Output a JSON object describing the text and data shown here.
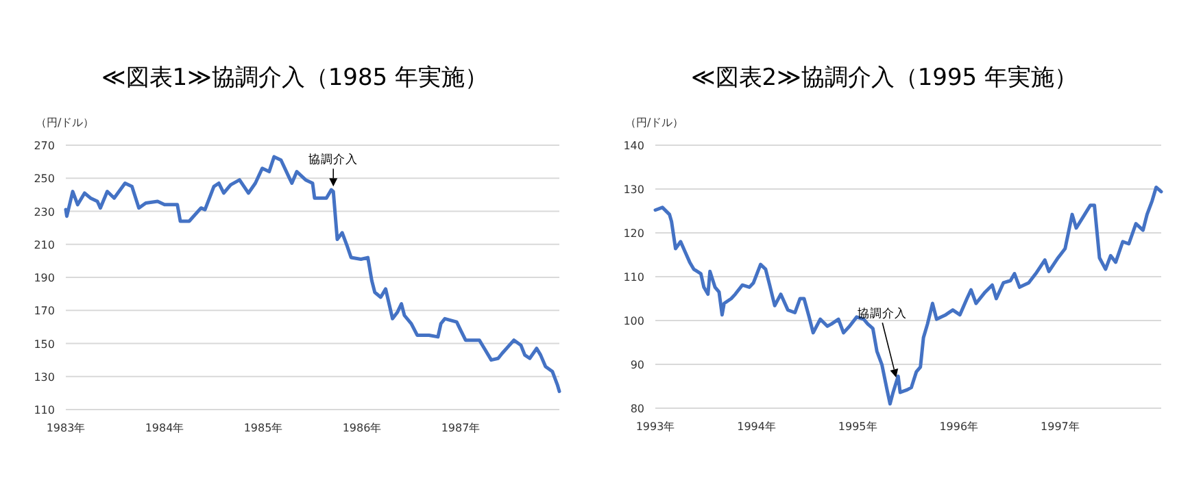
{
  "chart_data": [
    {
      "type": "line",
      "title": "≪図表1≫協調介入（1985 年実施）",
      "ylabel": "（円/ドル）",
      "grid": "y",
      "marker": "none",
      "line_style": "solid",
      "xlim": [
        1983,
        1988
      ],
      "xticks": [
        {
          "value": 1983,
          "label": "1983年"
        },
        {
          "value": 1984,
          "label": "1984年"
        },
        {
          "value": 1985,
          "label": "1985年"
        },
        {
          "value": 1986,
          "label": "1986年"
        },
        {
          "value": 1987,
          "label": "1987年"
        }
      ],
      "ylim": [
        110,
        270
      ],
      "yticks": [
        110,
        130,
        150,
        170,
        190,
        210,
        230,
        250,
        270
      ],
      "annotations": [
        {
          "text": "協調介入",
          "x": 1985.71,
          "y": 245
        }
      ],
      "series": [
        {
          "color": "#4472c4",
          "x": [
            1983.0,
            1983.01,
            1983.07,
            1983.12,
            1983.19,
            1983.25,
            1983.32,
            1983.35,
            1983.42,
            1983.49,
            1983.6,
            1983.67,
            1983.74,
            1983.81,
            1983.93,
            1984.0,
            1984.13,
            1984.16,
            1984.25,
            1984.37,
            1984.41,
            1984.5,
            1984.55,
            1984.6,
            1984.67,
            1984.76,
            1984.85,
            1984.92,
            1984.99,
            1985.06,
            1985.11,
            1985.18,
            1985.25,
            1985.29,
            1985.34,
            1985.43,
            1985.5,
            1985.52,
            1985.64,
            1985.69,
            1985.71,
            1985.75,
            1985.8,
            1985.85,
            1985.89,
            1985.99,
            1986.06,
            1986.1,
            1986.13,
            1986.19,
            1986.24,
            1986.31,
            1986.36,
            1986.4,
            1986.43,
            1986.5,
            1986.56,
            1986.68,
            1986.77,
            1986.8,
            1986.84,
            1986.96,
            1987.0,
            1987.05,
            1987.19,
            1987.24,
            1987.31,
            1987.38,
            1987.42,
            1987.54,
            1987.61,
            1987.65,
            1987.7,
            1987.77,
            1987.81,
            1987.86,
            1987.93,
            1987.98,
            1988.0
          ],
          "values": [
            231,
            227,
            242,
            234,
            241,
            238,
            236,
            232,
            242,
            238,
            247,
            245,
            232,
            235,
            236,
            234,
            234,
            224,
            224,
            232,
            231,
            245,
            247,
            241,
            246,
            249,
            241,
            247,
            256,
            254,
            263,
            261,
            252,
            247,
            254,
            249,
            247,
            238,
            238,
            243,
            242,
            213,
            217,
            209,
            202,
            201,
            202,
            188,
            181,
            178,
            183,
            165,
            169,
            174,
            167,
            162,
            155,
            155,
            154,
            162,
            165,
            163,
            158,
            152,
            152,
            147,
            140,
            141,
            144,
            152,
            149,
            143,
            141,
            147,
            143,
            136,
            133,
            125,
            121
          ]
        }
      ]
    },
    {
      "type": "line",
      "title": "≪図表2≫協調介入（1995 年実施）",
      "ylabel": "（円/ドル）",
      "grid": "y",
      "marker": "none",
      "line_style": "solid",
      "xlim": [
        1993,
        1998
      ],
      "xticks": [
        {
          "value": 1993,
          "label": "1993年"
        },
        {
          "value": 1994,
          "label": "1994年"
        },
        {
          "value": 1995,
          "label": "1995年"
        },
        {
          "value": 1996,
          "label": "1996年"
        },
        {
          "value": 1997,
          "label": "1997年"
        }
      ],
      "ylim": [
        80,
        140
      ],
      "yticks": [
        80,
        90,
        100,
        110,
        120,
        130,
        140
      ],
      "annotations": [
        {
          "text": "協調介入",
          "x": 1995.38,
          "y": 87
        }
      ],
      "series": [
        {
          "color": "#4472c4",
          "x": [
            1993.0,
            1993.07,
            1993.14,
            1993.16,
            1993.2,
            1993.25,
            1993.29,
            1993.34,
            1993.38,
            1993.45,
            1993.48,
            1993.52,
            1993.54,
            1993.59,
            1993.63,
            1993.66,
            1993.68,
            1993.75,
            1993.79,
            1993.86,
            1993.93,
            1993.97,
            1994.04,
            1994.09,
            1994.13,
            1994.18,
            1994.24,
            1994.31,
            1994.38,
            1994.43,
            1994.47,
            1994.52,
            1994.56,
            1994.63,
            1994.7,
            1994.74,
            1994.81,
            1994.86,
            1994.92,
            1994.99,
            1995.06,
            1995.1,
            1995.15,
            1995.19,
            1995.24,
            1995.29,
            1995.32,
            1995.35,
            1995.4,
            1995.42,
            1995.49,
            1995.53,
            1995.58,
            1995.62,
            1995.65,
            1995.69,
            1995.74,
            1995.78,
            1995.87,
            1995.94,
            1996.01,
            1996.08,
            1996.12,
            1996.17,
            1996.26,
            1996.33,
            1996.37,
            1996.44,
            1996.51,
            1996.55,
            1996.6,
            1996.69,
            1996.76,
            1996.85,
            1996.89,
            1996.98,
            1997.05,
            1997.12,
            1997.16,
            1997.23,
            1997.3,
            1997.34,
            1997.39,
            1997.45,
            1997.5,
            1997.55,
            1997.62,
            1997.68,
            1997.75,
            1997.82,
            1997.86,
            1997.91,
            1997.95,
            1998.0
          ],
          "values": [
            125.2,
            125.8,
            124.2,
            122.6,
            116.4,
            118,
            115.9,
            113.3,
            111.7,
            110.7,
            107.6,
            106,
            111.2,
            107.6,
            106.5,
            101.3,
            103.9,
            105,
            106,
            108.1,
            107.6,
            108.6,
            112.8,
            111.7,
            108.1,
            103.4,
            106,
            102.4,
            101.8,
            105,
            105,
            100.8,
            97.2,
            100.3,
            98.7,
            99.2,
            100.3,
            97.2,
            98.7,
            100.8,
            100.3,
            99.2,
            98.2,
            93,
            89.9,
            84.2,
            81,
            83.6,
            87.3,
            83.6,
            84.2,
            84.7,
            88.3,
            89.4,
            96.1,
            99.2,
            103.9,
            100.3,
            101.3,
            102.4,
            101.3,
            105,
            107,
            103.9,
            106.5,
            108.1,
            105,
            108.6,
            109.1,
            110.7,
            107.6,
            108.6,
            110.7,
            113.8,
            111.2,
            114.3,
            116.4,
            124.2,
            121.1,
            123.7,
            126.3,
            126.3,
            114.3,
            111.7,
            114.8,
            113.3,
            118,
            117.5,
            122.1,
            120.6,
            124.2,
            127.3,
            130.4,
            129.4
          ]
        }
      ]
    }
  ]
}
